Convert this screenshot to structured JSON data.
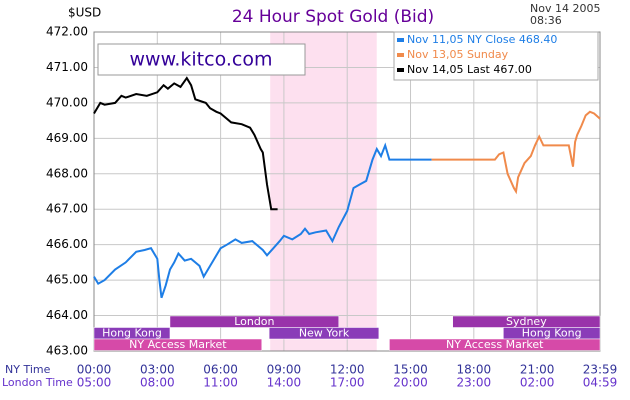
{
  "chart_data": {
    "type": "line",
    "title": "24 Hour Spot Gold (Bid)",
    "unit_label": "$USD",
    "timestamp": [
      "Nov 14 2005",
      "08:36"
    ],
    "watermark": "www.kitco.com",
    "x_row_labels": [
      "NY Time",
      "London Time"
    ],
    "xlim": [
      0,
      23.98
    ],
    "ylim": [
      463,
      472
    ],
    "yticks": [
      {
        "value": 463,
        "label": "463.00"
      },
      {
        "value": 464,
        "label": "464.00"
      },
      {
        "value": 465,
        "label": "465.00"
      },
      {
        "value": 466,
        "label": "466.00"
      },
      {
        "value": 467,
        "label": "467.00"
      },
      {
        "value": 468,
        "label": "468.00"
      },
      {
        "value": 469,
        "label": "469.00"
      },
      {
        "value": 470,
        "label": "470.00"
      },
      {
        "value": 471,
        "label": "471.00"
      },
      {
        "value": 472,
        "label": "472.00"
      }
    ],
    "xticks": [
      {
        "value": 0,
        "label": "00:00"
      },
      {
        "value": 3,
        "label": "03:00"
      },
      {
        "value": 6,
        "label": "06:00"
      },
      {
        "value": 9,
        "label": "09:00"
      },
      {
        "value": 12,
        "label": "12:00"
      },
      {
        "value": 15,
        "label": "15:00"
      },
      {
        "value": 18,
        "label": "18:00"
      },
      {
        "value": 21,
        "label": "21:00"
      },
      {
        "value": 23.98,
        "label": "23:59"
      }
    ],
    "london_labels": [
      "05:00",
      "08:00",
      "11:00",
      "14:00",
      "17:00",
      "20:00",
      "23:00",
      "02:00",
      "04:59"
    ],
    "grid": true,
    "highlight": [
      8.35,
      13.4
    ],
    "highlight_color": "#fde0ef",
    "series": [
      {
        "name": "Nov 11,05 NY Close 468.40",
        "color": "#1e7ee6",
        "x": [
          0,
          0.2,
          0.5,
          1.0,
          1.5,
          2.0,
          2.4,
          2.7,
          3.0,
          3.1,
          3.2,
          3.4,
          3.6,
          3.8,
          4.0,
          4.3,
          4.6,
          5.0,
          5.2,
          5.6,
          6.0,
          6.3,
          6.7,
          7.0,
          7.5,
          8.0,
          8.2,
          8.5,
          8.8,
          9.0,
          9.4,
          9.8,
          10.0,
          10.2,
          10.5,
          11.0,
          11.3,
          11.6,
          12.0,
          12.3,
          12.6,
          12.9,
          13.2,
          13.4,
          13.6,
          13.8,
          14.0,
          16.0
        ],
        "values": [
          465.1,
          464.9,
          465.0,
          465.3,
          465.5,
          465.8,
          465.85,
          465.9,
          465.6,
          465.0,
          464.5,
          464.85,
          465.3,
          465.5,
          465.75,
          465.55,
          465.6,
          465.4,
          465.1,
          465.5,
          465.9,
          466.0,
          466.15,
          466.05,
          466.1,
          465.85,
          465.7,
          465.9,
          466.1,
          466.25,
          466.15,
          466.3,
          466.45,
          466.3,
          466.35,
          466.4,
          466.1,
          466.5,
          466.95,
          467.6,
          467.7,
          467.8,
          468.4,
          468.7,
          468.5,
          468.8,
          468.4,
          468.4
        ]
      },
      {
        "name": "Nov 13,05 Sunday",
        "color": "#f08a4b",
        "x": [
          16.0,
          19.0,
          19.2,
          19.4,
          19.6,
          19.9,
          20.0,
          20.1,
          20.4,
          20.7,
          20.9,
          21.1,
          21.3,
          22.0,
          22.5,
          22.7,
          22.8,
          22.9,
          23.1,
          23.3,
          23.5,
          23.7,
          23.98
        ],
        "values": [
          468.4,
          468.4,
          468.55,
          468.6,
          468.0,
          467.6,
          467.5,
          467.9,
          468.3,
          468.5,
          468.8,
          469.05,
          468.8,
          468.8,
          468.8,
          468.2,
          468.9,
          469.1,
          469.35,
          469.65,
          469.75,
          469.7,
          469.55
        ]
      },
      {
        "name": "Nov 14,05 Last 467.00",
        "color": "#000000",
        "x": [
          0,
          0.3,
          0.5,
          1.0,
          1.3,
          1.5,
          2.0,
          2.5,
          3.0,
          3.3,
          3.5,
          3.8,
          4.1,
          4.4,
          4.6,
          4.8,
          5.3,
          5.5,
          5.8,
          6.0,
          6.5,
          7.0,
          7.4,
          7.6,
          7.9,
          8.0,
          8.2,
          8.4,
          8.7
        ],
        "values": [
          469.7,
          470.0,
          469.95,
          470.0,
          470.2,
          470.15,
          470.25,
          470.2,
          470.3,
          470.5,
          470.4,
          470.55,
          470.45,
          470.7,
          470.5,
          470.1,
          470.0,
          469.85,
          469.75,
          469.7,
          469.45,
          469.4,
          469.3,
          469.1,
          468.7,
          468.6,
          467.7,
          467.0,
          467.0
        ]
      }
    ],
    "session_rows": [
      [
        {
          "name": "London",
          "start": 3.6,
          "end": 11.6,
          "color": "#9933aa"
        },
        {
          "name": "Sydney",
          "start": 17.0,
          "end": 23.98,
          "color": "#9933aa"
        }
      ],
      [
        {
          "name": "Hong Kong",
          "start": 0,
          "end": 3.6,
          "color": "#8a3cb8"
        },
        {
          "name": "New York",
          "start": 8.3,
          "end": 13.5,
          "color": "#8a3cb8"
        },
        {
          "name": "Hong Kong",
          "start": 19.4,
          "end": 23.98,
          "color": "#8a3cb8"
        }
      ],
      [
        {
          "name": "NY Access Market",
          "start": 0,
          "end": 7.95,
          "color": "#d64aa8"
        },
        {
          "name": "NY Access Market",
          "start": 14.0,
          "end": 23.98,
          "color": "#d64aa8"
        }
      ]
    ]
  }
}
